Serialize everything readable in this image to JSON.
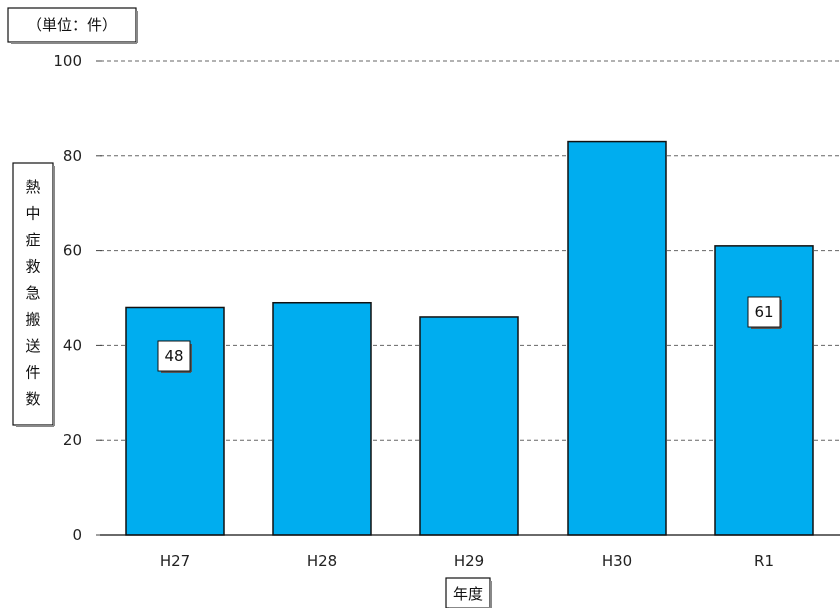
{
  "chart_data": {
    "type": "bar",
    "unit_label": "（単位：件）",
    "xlabel": "年度",
    "ylabel": "熱中症救急搬送件数",
    "categories": [
      "H27",
      "H28",
      "H29",
      "H30",
      "R1"
    ],
    "values": [
      48,
      49,
      46,
      83,
      61
    ],
    "data_labels": [
      {
        "index": 0,
        "text": "48"
      },
      {
        "index": 4,
        "text": "61"
      }
    ],
    "ylim": [
      0,
      100
    ],
    "yticks": [
      "0",
      "20",
      "40",
      "60",
      "80",
      "100"
    ],
    "grid": true,
    "bar_color": "#00adef",
    "bar_edge_color": "#111111",
    "grid_color": "#666666"
  }
}
